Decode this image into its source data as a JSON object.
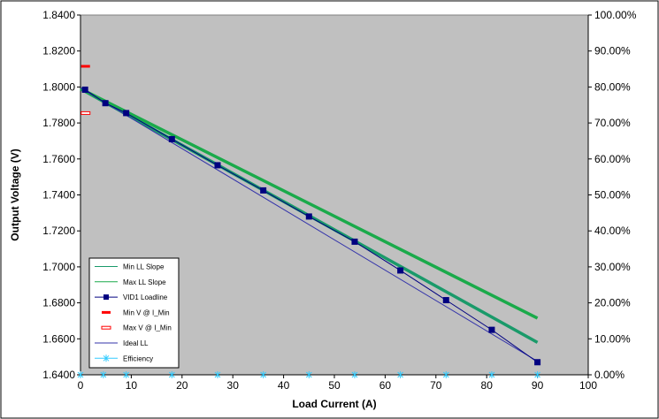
{
  "chart_data": {
    "type": "line",
    "xlabel": "Load Current (A)",
    "ylabel": "Output Voltage (V)",
    "xlim": [
      0,
      100
    ],
    "ylim": [
      1.64,
      1.84
    ],
    "y2lim": [
      0,
      1
    ],
    "x_ticks": [
      "0",
      "10",
      "20",
      "30",
      "40",
      "50",
      "60",
      "70",
      "80",
      "90",
      "100"
    ],
    "y_ticks": [
      "1.6400",
      "1.6600",
      "1.6800",
      "1.7000",
      "1.7200",
      "1.7400",
      "1.7600",
      "1.7800",
      "1.8000",
      "1.8200",
      "1.8400"
    ],
    "y2_ticks": [
      "0.00%",
      "10.00%",
      "20.00%",
      "30.00%",
      "40.00%",
      "50.00%",
      "60.00%",
      "70.00%",
      "80.00%",
      "90.00%",
      "100.00%"
    ],
    "grid": false,
    "legend_position": "bottom-left",
    "colors": {
      "plot_background": "#c0c0c0",
      "min_ll_slope": "#1a9a6a",
      "max_ll_slope": "#1aaa4a",
      "vid1_loadline": "#000080",
      "min_v": "#ff0000",
      "max_v": "#ff0000",
      "ideal_ll": "#3333aa",
      "efficiency": "#33ccff"
    },
    "series": [
      {
        "name": "Min LL Slope",
        "key": "min_ll_slope",
        "x": [
          0,
          90
        ],
        "y": [
          1.799,
          1.658
        ]
      },
      {
        "name": "Max LL Slope",
        "key": "max_ll_slope",
        "x": [
          0,
          90
        ],
        "y": [
          1.799,
          1.6715
        ]
      },
      {
        "name": "VID1 Loadline",
        "key": "vid1_loadline",
        "x": [
          0.9,
          4.9,
          9,
          18,
          27,
          36,
          45,
          54,
          63,
          72,
          81,
          90
        ],
        "y": [
          1.7985,
          1.791,
          1.7855,
          1.771,
          1.7565,
          1.7425,
          1.728,
          1.714,
          1.698,
          1.6815,
          1.665,
          1.647
        ]
      },
      {
        "name": "Min V @ I_Min",
        "key": "min_v",
        "x": [
          1
        ],
        "y": [
          1.8115
        ]
      },
      {
        "name": "Max V @ I_Min",
        "key": "max_v",
        "x": [
          1
        ],
        "y": [
          1.7855
        ]
      },
      {
        "name": "Ideal LL",
        "key": "ideal_ll",
        "x": [
          0,
          90
        ],
        "y": [
          1.7995,
          1.6475
        ]
      },
      {
        "name": "Efficiency",
        "key": "efficiency",
        "axis": "right",
        "x": [
          0,
          4.5,
          9,
          18,
          27,
          36,
          45,
          54,
          63,
          72,
          81,
          90
        ],
        "y": [
          0,
          0,
          0,
          0,
          0,
          0,
          0,
          0,
          0,
          0,
          0,
          0
        ]
      }
    ]
  }
}
